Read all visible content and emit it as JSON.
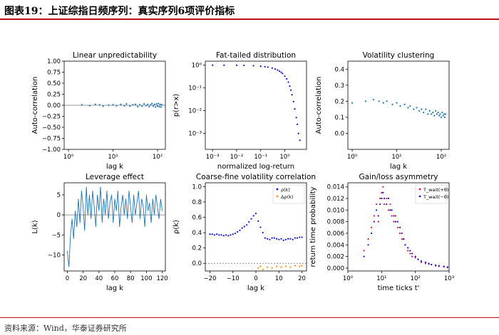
{
  "figure_title": "图表19：上证综指日频序列：真实序列6项评价指标",
  "source": "资料来源：Wind，华泰证券研究所",
  "colors": {
    "accent": "#b5121b",
    "series_blue": "#1f77b4",
    "dot_blue": "#1010ee",
    "dot_orange": "#ff8c00",
    "dot_red": "#e8141c"
  },
  "chart_data": [
    {
      "type": "scatter",
      "title": "Linear unpredictability",
      "xlabel": "lag k",
      "ylabel": "Auto-correlation",
      "x_scale": "log",
      "xlim": [
        0.8,
        150
      ],
      "ylim": [
        -1.0,
        1.0
      ],
      "xticks": [
        1,
        10,
        100
      ],
      "xticklabels": [
        "10⁰",
        "10¹",
        "10²"
      ],
      "yticks": [
        -1.0,
        -0.75,
        -0.5,
        -0.25,
        0.0,
        0.25,
        0.5,
        0.75,
        1.0
      ],
      "yticklabels": [
        "−1.00",
        "−0.75",
        "−0.50",
        "−0.25",
        "0.00",
        "0.25",
        "0.50",
        "0.75",
        "1.00"
      ],
      "hline": 0,
      "points": [
        [
          2,
          0.01
        ],
        [
          3,
          -0.01
        ],
        [
          4,
          0.02
        ],
        [
          5,
          0.01
        ],
        [
          6,
          -0.02
        ],
        [
          8,
          0.0
        ],
        [
          10,
          0.01
        ],
        [
          12,
          -0.01
        ],
        [
          15,
          0.02
        ],
        [
          18,
          -0.01
        ],
        [
          20,
          0.03
        ],
        [
          24,
          -0.02
        ],
        [
          28,
          0.01
        ],
        [
          32,
          0.02
        ],
        [
          36,
          -0.03
        ],
        [
          40,
          0.01
        ],
        [
          45,
          -0.02
        ],
        [
          50,
          0.03
        ],
        [
          55,
          -0.01
        ],
        [
          60,
          0.02
        ],
        [
          65,
          -0.03
        ],
        [
          70,
          0.01
        ],
        [
          75,
          0.04
        ],
        [
          80,
          -0.02
        ],
        [
          85,
          0.02
        ],
        [
          90,
          -0.04
        ],
        [
          95,
          0.03
        ],
        [
          100,
          -0.02
        ],
        [
          105,
          0.04
        ],
        [
          110,
          -0.03
        ],
        [
          115,
          0.02
        ],
        [
          120,
          -0.04
        ],
        [
          125,
          0.01
        ]
      ]
    },
    {
      "type": "scatter",
      "title": "Fat-tailed distribution",
      "xlabel": "normalized log-return",
      "ylabel": "p(r>x)",
      "x_scale": "log",
      "y_scale": "log",
      "xlim": [
        0.0005,
        8
      ],
      "ylim": [
        0.0002,
        1.5
      ],
      "xticks": [
        0.001,
        0.01,
        0.1,
        1
      ],
      "xticklabels": [
        "10⁻³",
        "10⁻²",
        "10⁻¹",
        "10⁰"
      ],
      "yticks": [
        0.001,
        0.01,
        0.1,
        1
      ],
      "yticklabels": [
        "10⁻³",
        "10⁻²",
        "10⁻¹",
        "10⁰"
      ],
      "points": [
        [
          0.001,
          1.0
        ],
        [
          0.003,
          0.998
        ],
        [
          0.01,
          0.99
        ],
        [
          0.02,
          0.98
        ],
        [
          0.05,
          0.95
        ],
        [
          0.1,
          0.9
        ],
        [
          0.15,
          0.86
        ],
        [
          0.2,
          0.82
        ],
        [
          0.3,
          0.75
        ],
        [
          0.4,
          0.68
        ],
        [
          0.5,
          0.61
        ],
        [
          0.6,
          0.55
        ],
        [
          0.7,
          0.49
        ],
        [
          0.8,
          0.43
        ],
        [
          1.0,
          0.33
        ],
        [
          1.2,
          0.25
        ],
        [
          1.4,
          0.18
        ],
        [
          1.6,
          0.12
        ],
        [
          1.8,
          0.08
        ],
        [
          2.0,
          0.05
        ],
        [
          2.3,
          0.025
        ],
        [
          2.6,
          0.012
        ],
        [
          3.0,
          0.005
        ],
        [
          3.3,
          0.0025
        ],
        [
          3.7,
          0.001
        ],
        [
          4.2,
          0.0005
        ]
      ]
    },
    {
      "type": "scatter",
      "title": "Volatility clustering",
      "xlabel": "lag k",
      "ylabel": "Auto-correlation",
      "x_scale": "log",
      "xlim": [
        0.8,
        150
      ],
      "ylim": [
        -0.1,
        0.45
      ],
      "xticks": [
        1,
        10,
        100
      ],
      "xticklabels": [
        "10⁰",
        "10¹",
        "10²"
      ],
      "yticks": [
        0.0,
        0.1,
        0.2,
        0.3,
        0.4
      ],
      "yticklabels": [
        "0.0",
        "0.1",
        "0.2",
        "0.3",
        "0.4"
      ],
      "points": [
        [
          1,
          0.19
        ],
        [
          2,
          0.2
        ],
        [
          3,
          0.21
        ],
        [
          4,
          0.2
        ],
        [
          5,
          0.19
        ],
        [
          6,
          0.2
        ],
        [
          8,
          0.18
        ],
        [
          10,
          0.19
        ],
        [
          12,
          0.17
        ],
        [
          15,
          0.18
        ],
        [
          18,
          0.16
        ],
        [
          20,
          0.17
        ],
        [
          24,
          0.15
        ],
        [
          28,
          0.16
        ],
        [
          32,
          0.14
        ],
        [
          36,
          0.15
        ],
        [
          40,
          0.13
        ],
        [
          45,
          0.15
        ],
        [
          50,
          0.12
        ],
        [
          55,
          0.14
        ],
        [
          60,
          0.12
        ],
        [
          65,
          0.13
        ],
        [
          70,
          0.11
        ],
        [
          75,
          0.14
        ],
        [
          80,
          0.12
        ],
        [
          85,
          0.13
        ],
        [
          90,
          0.11
        ],
        [
          95,
          0.12
        ],
        [
          100,
          0.1
        ],
        [
          105,
          0.13
        ],
        [
          110,
          0.11
        ],
        [
          115,
          0.12
        ],
        [
          120,
          0.1
        ],
        [
          125,
          0.12
        ]
      ]
    },
    {
      "type": "line",
      "title": "Leverage effect",
      "xlabel": "lag k",
      "ylabel": "L(k)",
      "xlim": [
        -4,
        124
      ],
      "ylim": [
        -14,
        8
      ],
      "xticks": [
        0,
        20,
        40,
        60,
        80,
        100,
        120
      ],
      "xticklabels": [
        "0",
        "20",
        "40",
        "60",
        "80",
        "100",
        "120"
      ],
      "yticks": [
        -10,
        -5,
        0,
        5
      ],
      "yticklabels": [
        "−10",
        "−5",
        "0",
        "5"
      ],
      "hline": 0,
      "x": [
        0,
        2,
        4,
        6,
        8,
        10,
        12,
        14,
        16,
        18,
        20,
        22,
        24,
        26,
        28,
        30,
        32,
        34,
        36,
        38,
        40,
        42,
        44,
        46,
        48,
        50,
        52,
        54,
        56,
        58,
        60,
        62,
        64,
        66,
        68,
        70,
        72,
        74,
        76,
        78,
        80,
        82,
        84,
        86,
        88,
        90,
        92,
        94,
        96,
        98,
        100,
        102,
        104,
        106,
        108,
        110,
        112,
        114,
        116,
        118,
        120
      ],
      "values": [
        -9,
        -13,
        -5,
        -1,
        -6,
        1,
        -3,
        4,
        -2,
        6,
        2,
        -4,
        7,
        0,
        5,
        -1,
        6,
        2,
        -3,
        5,
        1,
        7,
        -2,
        4,
        0,
        6,
        -1,
        3,
        5,
        -2,
        4,
        1,
        6,
        -3,
        2,
        5,
        0,
        4,
        -1,
        6,
        2,
        -2,
        5,
        0,
        3,
        6,
        -1,
        4,
        2,
        -3,
        5,
        1,
        3,
        -2,
        4,
        0,
        5,
        2,
        -1,
        4,
        1
      ]
    },
    {
      "type": "scatter",
      "title": "Coarse-fine volatility correlation",
      "xlabel": "lag k",
      "ylabel": "ρ(k)",
      "xlim": [
        -22,
        22
      ],
      "ylim": [
        -0.1,
        1.05
      ],
      "xticks": [
        -20,
        -10,
        0,
        10,
        20
      ],
      "xticklabels": [
        "−20",
        "−10",
        "0",
        "10",
        "20"
      ],
      "yticks": [
        0.0,
        0.2,
        0.4,
        0.6,
        0.8,
        1.0
      ],
      "yticklabels": [
        "0.0",
        "0.2",
        "0.4",
        "0.6",
        "0.8",
        "1.0"
      ],
      "hline": 0,
      "legend_loc": "upper right",
      "series": [
        {
          "name": "ρ(k)",
          "color": "dot_blue",
          "points": [
            [
              -20,
              0.38
            ],
            [
              -19,
              0.38
            ],
            [
              -18,
              0.37
            ],
            [
              -17,
              0.38
            ],
            [
              -16,
              0.37
            ],
            [
              -15,
              0.37
            ],
            [
              -14,
              0.36
            ],
            [
              -13,
              0.37
            ],
            [
              -12,
              0.36
            ],
            [
              -11,
              0.37
            ],
            [
              -10,
              0.38
            ],
            [
              -9,
              0.39
            ],
            [
              -8,
              0.41
            ],
            [
              -7,
              0.43
            ],
            [
              -6,
              0.46
            ],
            [
              -5,
              0.48
            ],
            [
              -4,
              0.5
            ],
            [
              -3,
              0.54
            ],
            [
              -2,
              0.58
            ],
            [
              -1,
              0.62
            ],
            [
              0,
              0.65
            ],
            [
              1,
              0.55
            ],
            [
              2,
              0.47
            ],
            [
              3,
              0.4
            ],
            [
              4,
              0.33
            ],
            [
              5,
              0.32
            ],
            [
              6,
              0.31
            ],
            [
              7,
              0.33
            ],
            [
              8,
              0.33
            ],
            [
              9,
              0.32
            ],
            [
              10,
              0.31
            ],
            [
              11,
              0.32
            ],
            [
              12,
              0.3
            ],
            [
              13,
              0.31
            ],
            [
              14,
              0.32
            ],
            [
              15,
              0.32
            ],
            [
              16,
              0.31
            ],
            [
              17,
              0.33
            ],
            [
              18,
              0.33
            ],
            [
              19,
              0.34
            ],
            [
              20,
              0.34
            ]
          ]
        },
        {
          "name": "Δρ(k)",
          "color": "dot_orange",
          "points": [
            [
              1,
              -0.06
            ],
            [
              2,
              -0.04
            ],
            [
              3,
              -0.08
            ],
            [
              5,
              -0.05
            ],
            [
              7,
              -0.06
            ],
            [
              9,
              -0.04
            ],
            [
              11,
              -0.05
            ],
            [
              13,
              -0.04
            ],
            [
              15,
              -0.05
            ],
            [
              17,
              -0.03
            ],
            [
              19,
              -0.04
            ],
            [
              20,
              -0.03
            ]
          ]
        }
      ]
    },
    {
      "type": "scatter",
      "title": "Gain/loss asymmetry",
      "xlabel": "time ticks t'",
      "ylabel": "return time probability",
      "x_scale": "log",
      "xlim": [
        1,
        1000
      ],
      "ylim": [
        -0.0005,
        0.0147
      ],
      "xticks": [
        1,
        10,
        100,
        1000
      ],
      "xticklabels": [
        "10⁰",
        "10¹",
        "10²",
        "10³"
      ],
      "yticks": [
        0.0,
        0.002,
        0.004,
        0.006,
        0.008,
        0.01,
        0.012,
        0.014
      ],
      "yticklabels": [
        "0.000",
        "0.002",
        "0.004",
        "0.006",
        "0.008",
        "0.010",
        "0.012",
        "0.014"
      ],
      "legend_loc": "upper right",
      "series": [
        {
          "name": "T_wait(+θ)",
          "color": "dot_red",
          "points": [
            [
              3,
              0.003
            ],
            [
              4,
              0.005
            ],
            [
              5,
              0.007
            ],
            [
              6,
              0.009
            ],
            [
              7,
              0.011
            ],
            [
              8,
              0.008
            ],
            [
              9,
              0.012
            ],
            [
              10,
              0.013
            ],
            [
              11,
              0.014
            ],
            [
              12,
              0.011
            ],
            [
              14,
              0.012
            ],
            [
              16,
              0.01
            ],
            [
              18,
              0.011
            ],
            [
              20,
              0.009
            ],
            [
              23,
              0.008
            ],
            [
              26,
              0.009
            ],
            [
              30,
              0.007
            ],
            [
              35,
              0.006
            ],
            [
              40,
              0.005
            ],
            [
              45,
              0.005
            ],
            [
              50,
              0.004
            ],
            [
              60,
              0.003
            ],
            [
              70,
              0.0025
            ],
            [
              80,
              0.002
            ],
            [
              100,
              0.0018
            ],
            [
              120,
              0.0015
            ],
            [
              150,
              0.001
            ],
            [
              200,
              0.0008
            ],
            [
              250,
              0.0007
            ],
            [
              300,
              0.0006
            ],
            [
              400,
              0.0004
            ],
            [
              500,
              0.0003
            ],
            [
              700,
              0.0002
            ],
            [
              900,
              0.0001
            ]
          ]
        },
        {
          "name": "T_wait(−θ)",
          "color": "dot_blue",
          "points": [
            [
              3,
              0.002
            ],
            [
              4,
              0.004
            ],
            [
              5,
              0.006
            ],
            [
              6,
              0.008
            ],
            [
              7,
              0.01
            ],
            [
              8,
              0.009
            ],
            [
              9,
              0.011
            ],
            [
              10,
              0.012
            ],
            [
              11,
              0.013
            ],
            [
              12,
              0.012
            ],
            [
              14,
              0.011
            ],
            [
              16,
              0.012
            ],
            [
              18,
              0.01
            ],
            [
              20,
              0.01
            ],
            [
              23,
              0.009
            ],
            [
              26,
              0.008
            ],
            [
              30,
              0.008
            ],
            [
              35,
              0.007
            ],
            [
              40,
              0.006
            ],
            [
              45,
              0.005
            ],
            [
              50,
              0.004
            ],
            [
              60,
              0.0035
            ],
            [
              70,
              0.003
            ],
            [
              80,
              0.0025
            ],
            [
              100,
              0.002
            ],
            [
              120,
              0.0015
            ],
            [
              150,
              0.0012
            ],
            [
              200,
              0.001
            ],
            [
              250,
              0.0008
            ],
            [
              300,
              0.0006
            ],
            [
              400,
              0.0005
            ],
            [
              500,
              0.0004
            ],
            [
              700,
              0.0003
            ],
            [
              900,
              0.0002
            ]
          ]
        }
      ]
    }
  ]
}
